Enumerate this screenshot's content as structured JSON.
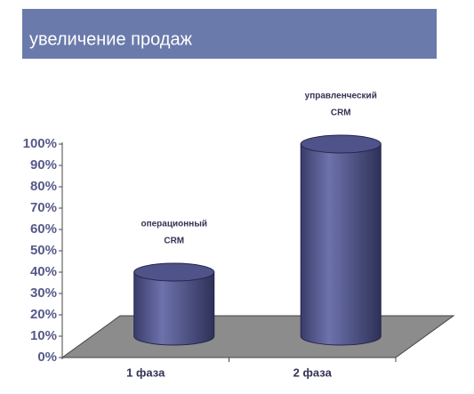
{
  "chart_data": {
    "type": "cylinder-bar",
    "title": "увеличение продаж",
    "categories": [
      "1 фаза",
      "2 фаза"
    ],
    "values": [
      30,
      90
    ],
    "color": "#4a4e85",
    "ylim": [
      0,
      100
    ],
    "yticks": [
      {
        "value": 0,
        "label": "0%"
      },
      {
        "value": 10,
        "label": "10%"
      },
      {
        "value": 20,
        "label": "20%"
      },
      {
        "value": 30,
        "label": "30%"
      },
      {
        "value": 40,
        "label": "40%"
      },
      {
        "value": 50,
        "label": "50%"
      },
      {
        "value": 60,
        "label": "60%"
      },
      {
        "value": 70,
        "label": "70%"
      },
      {
        "value": 80,
        "label": "80%"
      },
      {
        "value": 90,
        "label": "90%"
      },
      {
        "value": 100,
        "label": "100%"
      }
    ],
    "annotations": [
      [
        "операционный",
        "CRM"
      ],
      [
        "управленческий",
        "CRM"
      ]
    ]
  }
}
